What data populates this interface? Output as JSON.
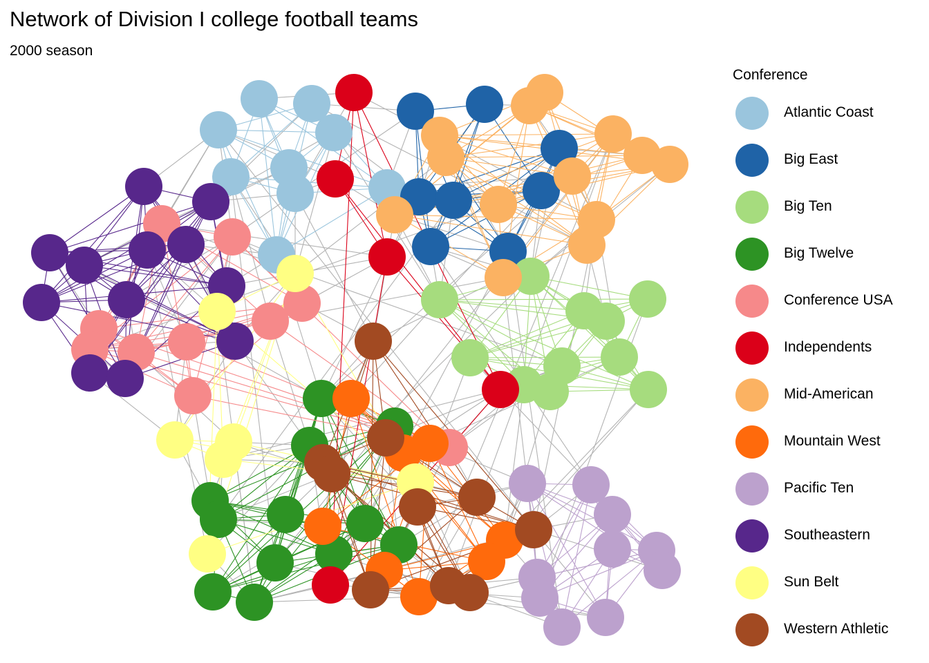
{
  "title": "Network of Division I college football teams",
  "subtitle": "2000 season",
  "legend": {
    "title": "Conference",
    "items": [
      {
        "label": "Atlantic Coast",
        "color": "#9ac5dd"
      },
      {
        "label": "Big East",
        "color": "#1f63a7"
      },
      {
        "label": "Big Ten",
        "color": "#a6dc7e"
      },
      {
        "label": "Big Twelve",
        "color": "#2d9324"
      },
      {
        "label": "Conference USA",
        "color": "#f6898a"
      },
      {
        "label": "Independents",
        "color": "#db0019"
      },
      {
        "label": "Mid-American",
        "color": "#fbb262"
      },
      {
        "label": "Mountain West",
        "color": "#ff6a0c"
      },
      {
        "label": "Pacific Ten",
        "color": "#bca1cd"
      },
      {
        "label": "Southeastern",
        "color": "#57278b"
      },
      {
        "label": "Sun Belt",
        "color": "#ffff83"
      },
      {
        "label": "Western Athletic",
        "color": "#a24a22"
      }
    ]
  },
  "colors": {
    "inter_edge": "#b3b3b3"
  }
}
